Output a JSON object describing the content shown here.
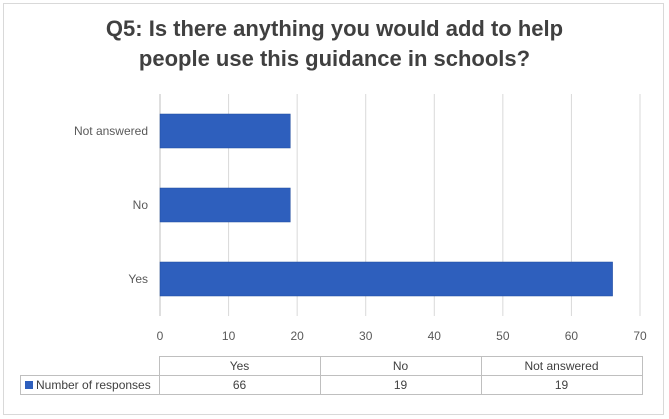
{
  "chart_data": {
    "type": "bar",
    "orientation": "horizontal",
    "title_lines": [
      "Q5: Is there anything you would add to help",
      "people use this guidance in schools?"
    ],
    "categories": [
      "Yes",
      "No",
      "Not answered"
    ],
    "series": [
      {
        "name": "Number of responses",
        "values": [
          66,
          19,
          19
        ],
        "color": "#2e5fbd"
      }
    ],
    "xlim": [
      0,
      70
    ],
    "x_ticks": [
      0,
      10,
      20,
      30,
      40,
      50,
      60,
      70
    ],
    "grid": "vertical",
    "data_table": true
  }
}
